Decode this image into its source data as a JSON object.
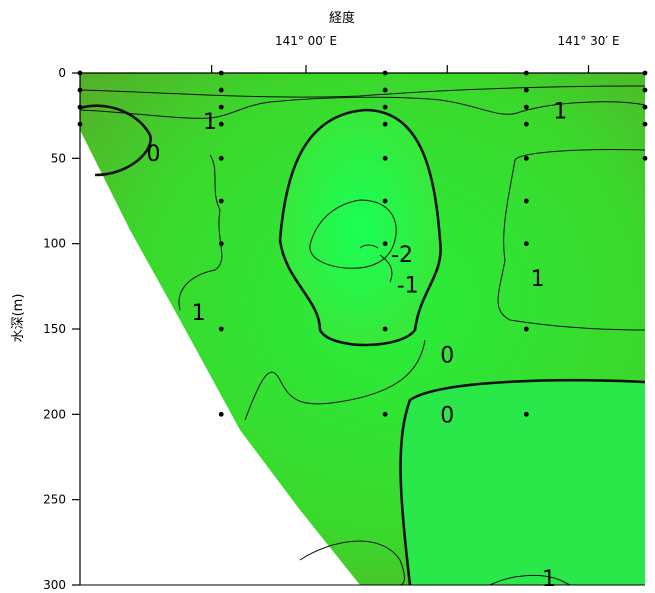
{
  "chart_data": {
    "type": "contour",
    "xlabel": "経度",
    "ylabel": "水深(m)",
    "ylim": [
      0,
      300
    ],
    "y_ticks": [
      0,
      50,
      100,
      150,
      200,
      250,
      300
    ],
    "y_tick_labels": [
      "0",
      "50",
      "100",
      "150",
      "200",
      "250",
      "300"
    ],
    "x_ticks": [
      140.833,
      141.0,
      141.25,
      141.5
    ],
    "x_tick_labels": [
      "",
      "141° 00′ E",
      "",
      "141° 30′ E"
    ],
    "xlim": [
      140.6,
      141.6
    ],
    "grid": false,
    "colors": {
      "fill": "#33dd33",
      "fill_dark": "#55b02a",
      "fill_light": "#22ee44",
      "line": "#111111"
    },
    "contour_labels": [
      {
        "text": "1",
        "lon": 140.83,
        "depth": 28
      },
      {
        "text": "0",
        "lon": 140.73,
        "depth": 47
      },
      {
        "text": "1",
        "lon": 141.45,
        "depth": 22
      },
      {
        "text": "-2",
        "lon": 141.17,
        "depth": 106
      },
      {
        "text": "-1",
        "lon": 141.18,
        "depth": 124
      },
      {
        "text": "1",
        "lon": 141.41,
        "depth": 120
      },
      {
        "text": "1",
        "lon": 140.81,
        "depth": 140
      },
      {
        "text": "0",
        "lon": 141.25,
        "depth": 165
      },
      {
        "text": "0",
        "lon": 141.25,
        "depth": 200
      },
      {
        "text": "1",
        "lon": 141.43,
        "depth": 296
      }
    ],
    "stations": [
      {
        "lon": 140.6,
        "depths": [
          0,
          10,
          20,
          30
        ]
      },
      {
        "lon": 140.85,
        "depths": [
          0,
          10,
          20,
          30,
          50,
          75,
          100,
          150,
          200
        ]
      },
      {
        "lon": 141.14,
        "depths": [
          0,
          10,
          20,
          30,
          50,
          75,
          100,
          150,
          200
        ]
      },
      {
        "lon": 141.39,
        "depths": [
          0,
          10,
          20,
          30,
          50,
          75,
          100,
          150,
          200
        ]
      },
      {
        "lon": 141.6,
        "depths": [
          0,
          10,
          20,
          30,
          50
        ]
      }
    ]
  }
}
